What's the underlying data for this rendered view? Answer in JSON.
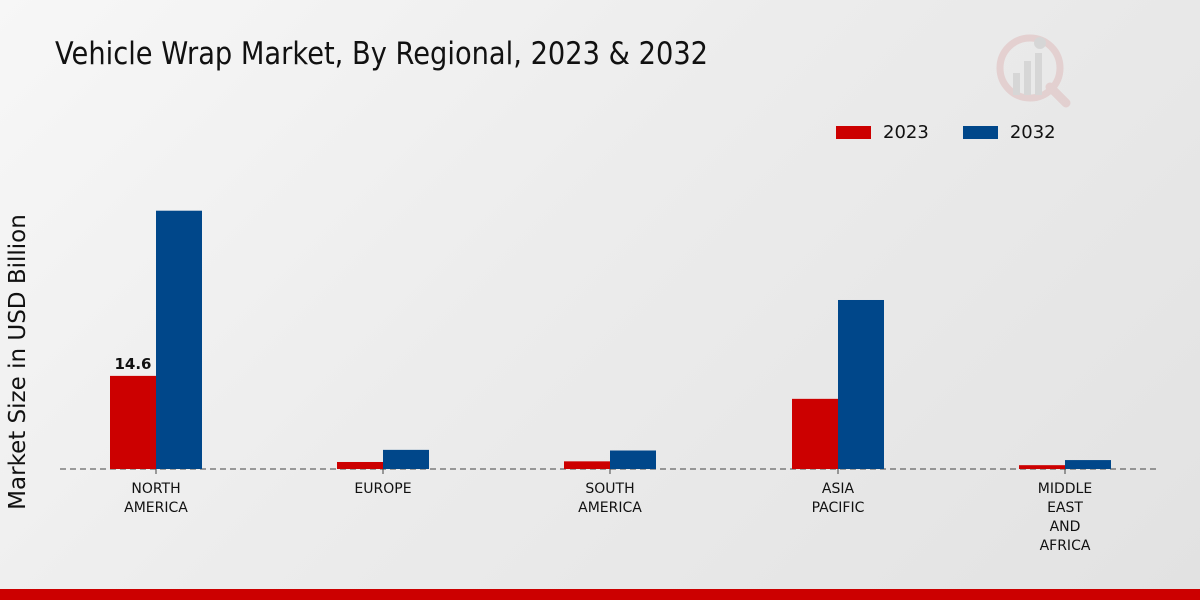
{
  "title": "Vehicle Wrap Market, By Regional, 2023 & 2032",
  "colors": {
    "series_2023": "#cc0000",
    "series_2032": "#00478a",
    "bottom_bar": "#cc0000"
  },
  "chart_data": {
    "type": "bar",
    "title": "Vehicle Wrap Market, By Regional, 2023 & 2032",
    "xlabel": "",
    "ylabel": "Market Size in USD Billion",
    "categories": [
      "NORTH\nAMERICA",
      "EUROPE",
      "SOUTH\nAMERICA",
      "ASIA\nPACIFIC",
      "MIDDLE\nEAST\nAND\nAFRICA"
    ],
    "series": [
      {
        "name": "2023",
        "color": "#cc0000",
        "values": [
          14.6,
          1.1,
          1.2,
          11.0,
          0.6
        ]
      },
      {
        "name": "2032",
        "color": "#00478a",
        "values": [
          40.5,
          3.0,
          2.9,
          26.5,
          1.4
        ]
      }
    ],
    "data_labels": [
      {
        "series": 0,
        "category": 0,
        "text": "14.6"
      }
    ],
    "ylim": [
      0,
      45
    ],
    "grid": false,
    "legend": "top-right"
  }
}
